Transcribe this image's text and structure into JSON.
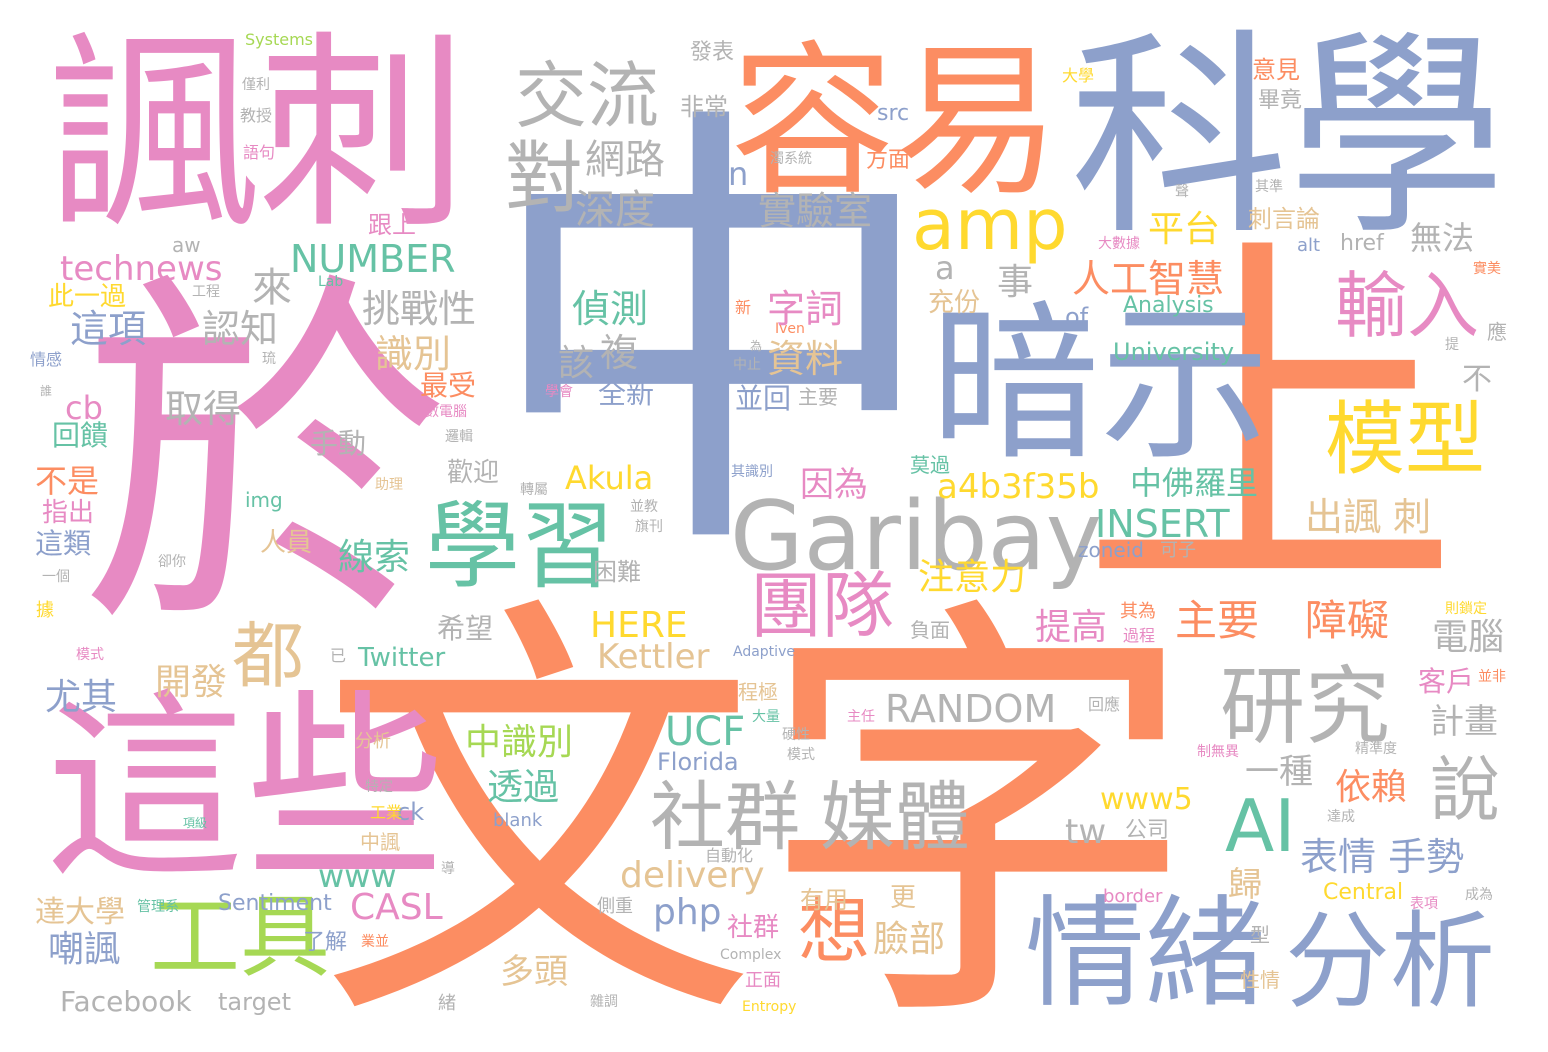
{
  "title": "word-cloud",
  "palette": {
    "orange": "#fc8d62",
    "blue": "#8da0cb",
    "pink": "#e78ac3",
    "green": "#66c2a5",
    "lime": "#a6d854",
    "yellow": "#ffd92f",
    "tan": "#e5c494",
    "gray": "#b3b3b3"
  },
  "words": [
    {
      "text": "中",
      "color": "#8da0cb"
    },
    {
      "text": "文字",
      "color": "#fc8d62"
    },
    {
      "text": "於",
      "color": "#e78ac3"
    },
    {
      "text": "上",
      "color": "#fc8d62"
    },
    {
      "text": "諷刺",
      "color": "#e78ac3"
    },
    {
      "text": "科學",
      "color": "#8da0cb"
    },
    {
      "text": "容易",
      "color": "#fc8d62"
    },
    {
      "text": "暗示",
      "color": "#8da0cb"
    },
    {
      "text": "這些",
      "color": "#e78ac3"
    },
    {
      "text": "Garibay",
      "color": "#b3b3b3"
    },
    {
      "text": "情緒",
      "color": "#8da0cb"
    },
    {
      "text": "分析",
      "color": "#8da0cb"
    },
    {
      "text": "學習",
      "color": "#66c2a5"
    },
    {
      "text": "工具",
      "color": "#a6d854"
    },
    {
      "text": "研究",
      "color": "#b3b3b3"
    },
    {
      "text": "社群",
      "color": "#b3b3b3"
    },
    {
      "text": "媒體",
      "color": "#b3b3b3"
    },
    {
      "text": "模型",
      "color": "#ffd92f"
    },
    {
      "text": "團隊",
      "color": "#e78ac3"
    },
    {
      "text": "交流",
      "color": "#b3b3b3"
    },
    {
      "text": "對",
      "color": "#b3b3b3"
    },
    {
      "text": "amp",
      "color": "#ffd92f"
    },
    {
      "text": "輸入",
      "color": "#e78ac3"
    },
    {
      "text": "AI",
      "color": "#66c2a5"
    },
    {
      "text": "都",
      "color": "#e5c494"
    },
    {
      "text": "想",
      "color": "#fc8d62"
    },
    {
      "text": "說",
      "color": "#b3b3b3"
    },
    {
      "text": "網路",
      "color": "#b3b3b3"
    },
    {
      "text": "深度",
      "color": "#b3b3b3"
    },
    {
      "text": "實驗室",
      "color": "#b3b3b3"
    },
    {
      "text": "平台",
      "color": "#ffd92f"
    },
    {
      "text": "人工智慧",
      "color": "#fc8d62"
    },
    {
      "text": "NUMBER",
      "color": "#66c2a5"
    },
    {
      "text": "technews",
      "color": "#e78ac3"
    },
    {
      "text": "挑戰性",
      "color": "#b3b3b3"
    },
    {
      "text": "這項",
      "color": "#8da0cb"
    },
    {
      "text": "認知",
      "color": "#b3b3b3"
    },
    {
      "text": "來",
      "color": "#b3b3b3"
    },
    {
      "text": "識別",
      "color": "#e5c494"
    },
    {
      "text": "取得",
      "color": "#b3b3b3"
    },
    {
      "text": "偵測",
      "color": "#66c2a5"
    },
    {
      "text": "字詞",
      "color": "#e78ac3"
    },
    {
      "text": "資料",
      "color": "#e5c494"
    },
    {
      "text": "複",
      "color": "#b3b3b3"
    },
    {
      "text": "該",
      "color": "#b3b3b3"
    },
    {
      "text": "全新",
      "color": "#8da0cb"
    },
    {
      "text": "並回",
      "color": "#8da0cb"
    },
    {
      "text": "主要",
      "color": "#fc8d62"
    },
    {
      "text": "障礙",
      "color": "#fc8d62"
    },
    {
      "text": "出諷 刺",
      "color": "#e5c494"
    },
    {
      "text": "表情 手勢",
      "color": "#8da0cb"
    },
    {
      "text": "提高",
      "color": "#e78ac3"
    },
    {
      "text": "無法",
      "color": "#b3b3b3"
    },
    {
      "text": "a4b3f35b",
      "color": "#ffd92f"
    },
    {
      "text": "因為",
      "color": "#e78ac3"
    },
    {
      "text": "中佛羅里",
      "color": "#66c2a5"
    },
    {
      "text": "INSERT",
      "color": "#66c2a5"
    },
    {
      "text": "Akula",
      "color": "#ffd92f"
    },
    {
      "text": "線索",
      "color": "#66c2a5"
    },
    {
      "text": "注意力",
      "color": "#ffd92f"
    },
    {
      "text": "電腦",
      "color": "#b3b3b3"
    },
    {
      "text": "RANDOM",
      "color": "#b3b3b3"
    },
    {
      "text": "HERE",
      "color": "#ffd92f"
    },
    {
      "text": "Kettler",
      "color": "#e5c494"
    },
    {
      "text": "開發",
      "color": "#e5c494"
    },
    {
      "text": "尤其",
      "color": "#8da0cb"
    },
    {
      "text": "中識別",
      "color": "#a6d854"
    },
    {
      "text": "UCF",
      "color": "#66c2a5"
    },
    {
      "text": "Florida",
      "color": "#8da0cb"
    },
    {
      "text": "透過",
      "color": "#66c2a5"
    },
    {
      "text": "www5",
      "color": "#ffd92f"
    },
    {
      "text": "一種",
      "color": "#b3b3b3"
    },
    {
      "text": "依賴",
      "color": "#fc8d62"
    },
    {
      "text": "計畫",
      "color": "#b3b3b3"
    },
    {
      "text": "客戶",
      "color": "#e78ac3"
    },
    {
      "text": "tw",
      "color": "#b3b3b3"
    },
    {
      "text": "公司",
      "color": "#b3b3b3"
    },
    {
      "text": "www",
      "color": "#66c2a5"
    },
    {
      "text": "delivery",
      "color": "#e5c494"
    },
    {
      "text": "CASL",
      "color": "#e78ac3"
    },
    {
      "text": "php",
      "color": "#8da0cb"
    },
    {
      "text": "多頭",
      "color": "#e5c494"
    },
    {
      "text": "臉部",
      "color": "#e5c494"
    },
    {
      "text": "社群",
      "color": "#e78ac3"
    },
    {
      "text": "歸",
      "color": "#e5c494"
    },
    {
      "text": "嘲諷",
      "color": "#8da0cb"
    },
    {
      "text": "Facebook",
      "color": "#b3b3b3"
    },
    {
      "text": "target",
      "color": "#b3b3b3"
    },
    {
      "text": "達大學",
      "color": "#e5c494"
    },
    {
      "text": "Sentiment",
      "color": "#8da0cb"
    },
    {
      "text": "Twitter",
      "color": "#66c2a5"
    },
    {
      "text": "希望",
      "color": "#b3b3b3"
    },
    {
      "text": "困難",
      "color": "#b3b3b3"
    },
    {
      "text": "手動",
      "color": "#b3b3b3"
    },
    {
      "text": "歡迎",
      "color": "#b3b3b3"
    },
    {
      "text": "cb",
      "color": "#e78ac3"
    },
    {
      "text": "回饋",
      "color": "#66c2a5"
    },
    {
      "text": "不是",
      "color": "#fc8d62"
    },
    {
      "text": "指出",
      "color": "#e78ac3"
    },
    {
      "text": "這類",
      "color": "#8da0cb"
    },
    {
      "text": "人員",
      "color": "#e5c494"
    },
    {
      "text": "最受",
      "color": "#fc8d62"
    },
    {
      "text": "此一過",
      "color": "#ffd92f"
    },
    {
      "text": "a",
      "color": "#b3b3b3"
    },
    {
      "text": "事",
      "color": "#b3b3b3"
    },
    {
      "text": "充份",
      "color": "#e5c494"
    },
    {
      "text": "of",
      "color": "#8da0cb"
    },
    {
      "text": "Analysis",
      "color": "#66c2a5"
    },
    {
      "text": "University",
      "color": "#66c2a5"
    },
    {
      "text": "zoneid",
      "color": "#8da0cb"
    },
    {
      "text": "可子",
      "color": "#b3b3b3"
    },
    {
      "text": "n",
      "color": "#8da0cb"
    },
    {
      "text": "非常",
      "color": "#b3b3b3"
    },
    {
      "text": "發表",
      "color": "#b3b3b3"
    },
    {
      "text": "src",
      "color": "#8da0cb"
    },
    {
      "text": "方面",
      "color": "#fc8d62"
    },
    {
      "text": "意見",
      "color": "#fc8d62"
    },
    {
      "text": "畢竟",
      "color": "#b3b3b3"
    },
    {
      "text": "刺言論",
      "color": "#e5c494"
    },
    {
      "text": "跟上",
      "color": "#e78ac3"
    },
    {
      "text": "href",
      "color": "#b3b3b3"
    },
    {
      "text": "alt",
      "color": "#8da0cb"
    },
    {
      "text": "不",
      "color": "#b3b3b3"
    },
    {
      "text": "應",
      "color": "#b3b3b3"
    },
    {
      "text": "Systems",
      "color": "#a6d854"
    },
    {
      "text": "aw",
      "color": "#b3b3b3"
    },
    {
      "text": "教授",
      "color": "#b3b3b3"
    },
    {
      "text": "語句",
      "color": "#e78ac3"
    },
    {
      "text": "僅利",
      "color": "#b3b3b3"
    },
    {
      "text": "大學",
      "color": "#ffd92f"
    },
    {
      "text": "其準",
      "color": "#b3b3b3"
    },
    {
      "text": "工程",
      "color": "#b3b3b3"
    },
    {
      "text": "情感",
      "color": "#8da0cb"
    },
    {
      "text": "Lab",
      "color": "#66c2a5"
    },
    {
      "text": "img",
      "color": "#66c2a5"
    },
    {
      "text": "助理",
      "color": "#e5c494"
    },
    {
      "text": "Iven",
      "color": "#fc8d62"
    },
    {
      "text": "新",
      "color": "#fc8d62"
    },
    {
      "text": "數電腦",
      "color": "#e78ac3"
    },
    {
      "text": "邏輯",
      "color": "#b3b3b3"
    },
    {
      "text": "中止",
      "color": "#b3b3b3"
    },
    {
      "text": "莫過",
      "color": "#66c2a5"
    },
    {
      "text": "其識別",
      "color": "#8da0cb"
    },
    {
      "text": "旗刊",
      "color": "#b3b3b3"
    },
    {
      "text": "並教",
      "color": "#b3b3b3"
    },
    {
      "text": "其為",
      "color": "#fc8d62"
    },
    {
      "text": "過程",
      "color": "#e78ac3"
    },
    {
      "text": "負面",
      "color": "#b3b3b3"
    },
    {
      "text": "程極",
      "color": "#e5c494"
    },
    {
      "text": "大量",
      "color": "#66c2a5"
    },
    {
      "text": "Adaptive",
      "color": "#8da0cb"
    },
    {
      "text": "ck",
      "color": "#8da0cb"
    },
    {
      "text": "blank",
      "color": "#8da0cb"
    },
    {
      "text": "自動化",
      "color": "#b3b3b3"
    },
    {
      "text": "有用",
      "color": "#e5c494"
    },
    {
      "text": "更",
      "color": "#e5c494"
    },
    {
      "text": "border",
      "color": "#e78ac3"
    },
    {
      "text": "Central",
      "color": "#ffd92f"
    },
    {
      "text": "成為",
      "color": "#b3b3b3"
    },
    {
      "text": "正面",
      "color": "#e78ac3"
    },
    {
      "text": "Complex",
      "color": "#b3b3b3"
    },
    {
      "text": "Entropy",
      "color": "#ffd92f"
    },
    {
      "text": "型",
      "color": "#b3b3b3"
    },
    {
      "text": "性情",
      "color": "#e5c494"
    },
    {
      "text": "雜調",
      "color": "#b3b3b3"
    },
    {
      "text": "緒",
      "color": "#b3b3b3"
    },
    {
      "text": "了解",
      "color": "#8da0cb"
    },
    {
      "text": "側重",
      "color": "#b3b3b3"
    },
    {
      "text": "中諷",
      "color": "#e5c494"
    },
    {
      "text": "分析",
      "color": "#e5c494"
    },
    {
      "text": "工業",
      "color": "#ffd92f"
    },
    {
      "text": "特定",
      "color": "#b3b3b3"
    },
    {
      "text": "已",
      "color": "#b3b3b3"
    },
    {
      "text": "精準度",
      "color": "#b3b3b3"
    },
    {
      "text": "達成",
      "color": "#b3b3b3"
    },
    {
      "text": "表項",
      "color": "#e78ac3"
    },
    {
      "text": "回應",
      "color": "#b3b3b3"
    },
    {
      "text": "並非",
      "color": "#fc8d62"
    },
    {
      "text": "則鎖定",
      "color": "#ffd92f"
    },
    {
      "text": "實美",
      "color": "#fc8d62"
    },
    {
      "text": "提",
      "color": "#b3b3b3"
    },
    {
      "text": "大數據",
      "color": "#e78ac3"
    },
    {
      "text": "主任",
      "color": "#e78ac3"
    },
    {
      "text": "模式",
      "color": "#e78ac3"
    },
    {
      "text": "據",
      "color": "#ffd92f"
    },
    {
      "text": "一個",
      "color": "#b3b3b3"
    },
    {
      "text": "卻你",
      "color": "#b3b3b3"
    },
    {
      "text": "管理系",
      "color": "#66c2a5"
    },
    {
      "text": "業並",
      "color": "#fc8d62"
    },
    {
      "text": "導",
      "color": "#b3b3b3"
    },
    {
      "text": "項級",
      "color": "#66c2a5"
    },
    {
      "text": "硬性",
      "color": "#b3b3b3"
    },
    {
      "text": "模式",
      "color": "#b3b3b3"
    },
    {
      "text": "制無異",
      "color": "#e78ac3"
    },
    {
      "text": "轉屬",
      "color": "#b3b3b3"
    },
    {
      "text": "學會",
      "color": "#e78ac3"
    },
    {
      "text": "為",
      "color": "#b3b3b3"
    },
    {
      "text": "主要",
      "color": "#b3b3b3"
    },
    {
      "text": "濁系統",
      "color": "#b3b3b3"
    },
    {
      "text": "聲",
      "color": "#b3b3b3"
    },
    {
      "text": "琉",
      "color": "#b3b3b3"
    },
    {
      "text": "誰",
      "color": "#b3b3b3"
    }
  ]
}
